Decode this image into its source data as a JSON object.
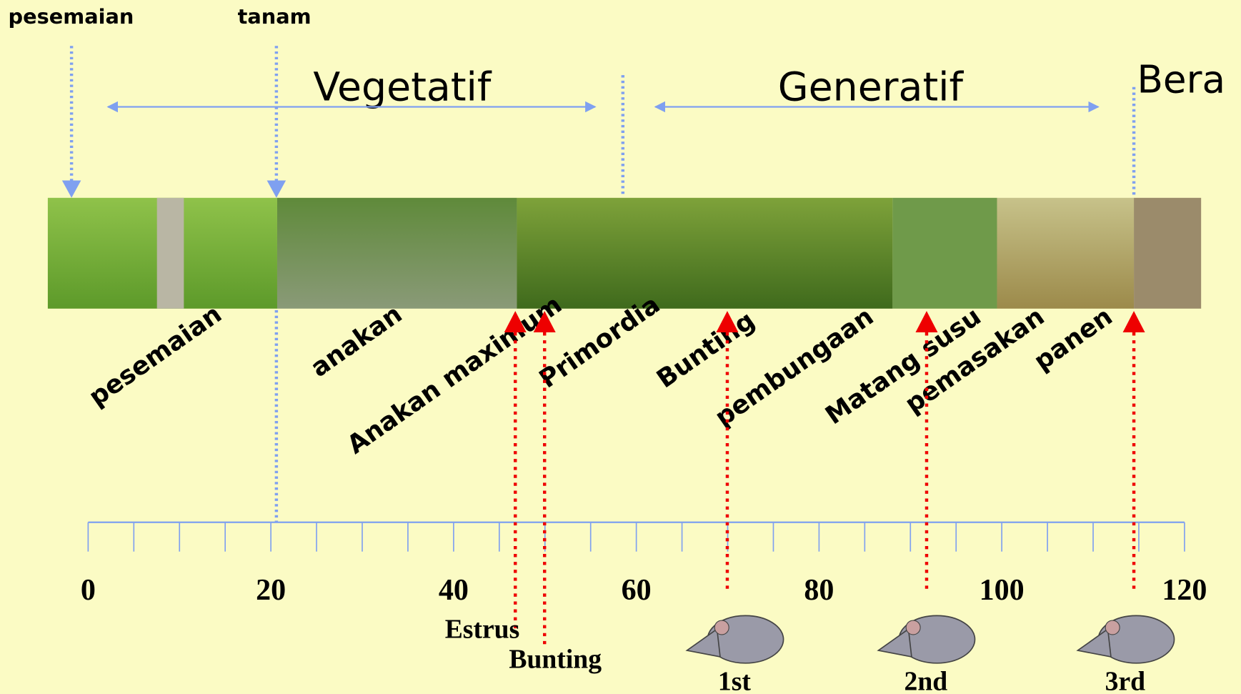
{
  "top_labels": {
    "seedbed": "pesemaian",
    "planting": "tanam"
  },
  "phases": {
    "vegetative": "Vegetatif",
    "generative": "Generatif",
    "fallow": "Bera"
  },
  "stages": [
    "pesemaian",
    "anakan",
    "Anakan maximum",
    "Primordia",
    "Bunting",
    "pembungaan",
    "Matang susu",
    "pemasakan",
    "panen"
  ],
  "axis": {
    "ticks": [
      0,
      20,
      40,
      60,
      80,
      100,
      120
    ]
  },
  "rat_events": {
    "estrus": "Estrus",
    "pregnant": "Bunting",
    "litters": [
      "1st",
      "2nd",
      "3rd"
    ]
  }
}
